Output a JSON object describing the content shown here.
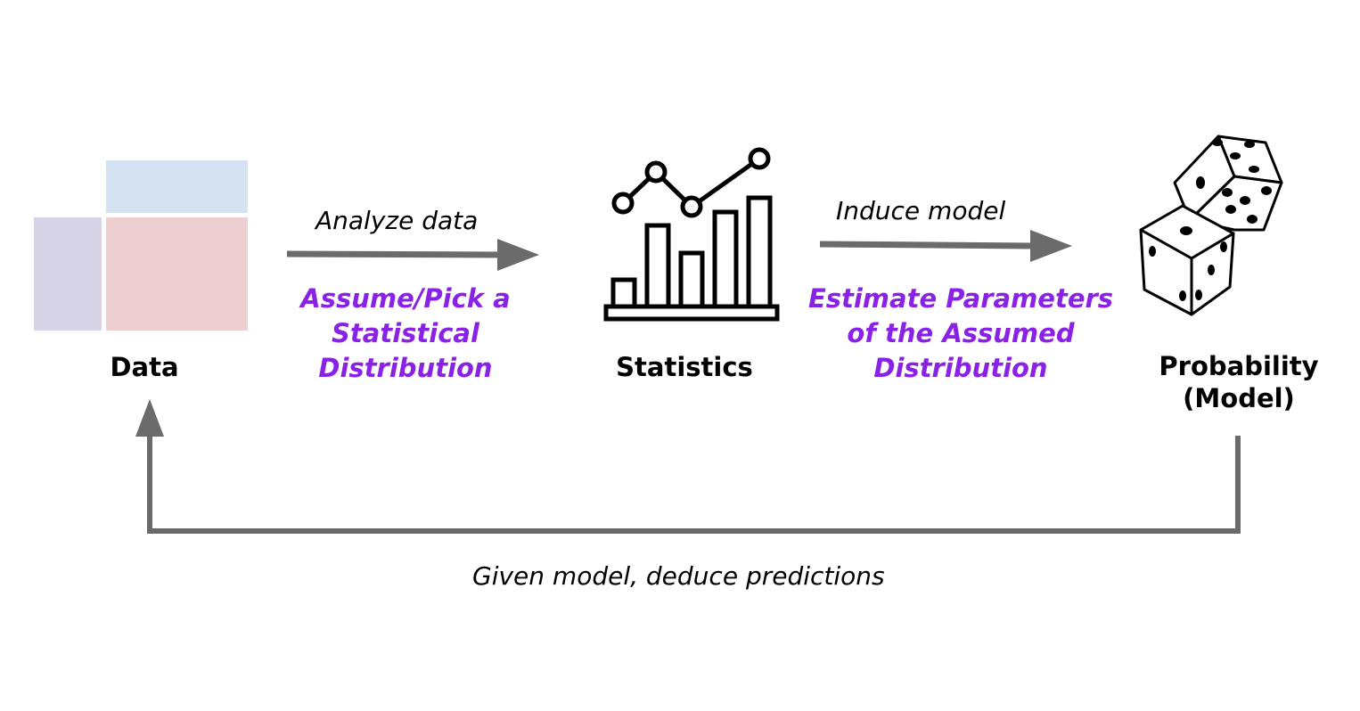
{
  "colors": {
    "arrow": "#6b6b6b",
    "accent": "#8a22e6",
    "text": "#000000",
    "data_top": "#d5e2f1",
    "data_left": "#d8d4e8",
    "data_main": "#eecfcf"
  },
  "nodes": {
    "data": {
      "label": "Data",
      "icon": "data-table-icon"
    },
    "statistics": {
      "label": "Statistics",
      "icon": "chart-icon"
    },
    "probability": {
      "label_lines": [
        "Probability",
        "(Model)"
      ],
      "icon": "dice-icon"
    }
  },
  "edges": {
    "analyze": {
      "label": "Analyze data",
      "sub_lines": [
        "Assume/Pick a",
        "Statistical",
        "Distribution"
      ]
    },
    "induce": {
      "label": "Induce model",
      "sub_lines": [
        "Estimate Parameters",
        "of the Assumed",
        "Distribution"
      ]
    },
    "deduce": {
      "label": "Given model, deduce predictions"
    }
  }
}
